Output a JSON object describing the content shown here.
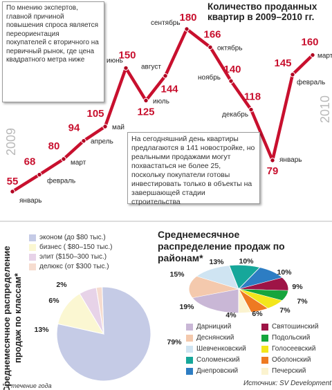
{
  "line_title": "Количество проданных квартир в 2009–2010 гг.",
  "note_experts": "По мнению экспертов, главной причиной повышения спроса является переориентация покупателей с вторичного на первичный рынок, где цена квадратного метра ниже",
  "note_today": "На сегодняшний день квартиры предлагаются в 141 новостройке, но реальными продажами могут похвастаться не более 25, поскольку покупатели готовы инвестировать только в объекты на завершающей стадии строительства",
  "year_2009": "2009",
  "year_2010": "2010",
  "classes_title": "Среднемесячное распределение продаж по классам*",
  "districts_title": "Среднемесячное распределение продаж по районам*",
  "footnote": "* в течение года",
  "source": "Источник: SV Development",
  "colors": {
    "line": "#c8102e",
    "marker": "#b00020"
  },
  "chart_data": [
    {
      "type": "line",
      "title": "Количество проданных квартир в 2009–2010 гг.",
      "x": [
        "январь",
        "февраль",
        "март",
        "апрель",
        "май",
        "июнь",
        "июль",
        "август",
        "сентябрь",
        "октябрь",
        "ноябрь",
        "декабрь",
        "январь",
        "февраль",
        "март"
      ],
      "series": [
        {
          "values": [
            55,
            68,
            80,
            94,
            105,
            150,
            125,
            144,
            180,
            166,
            140,
            118,
            79,
            145,
            160
          ]
        }
      ],
      "years": [
        "2009",
        "2010"
      ]
    },
    {
      "type": "pie",
      "title": "Среднемесячное распределение продаж по классам*",
      "labels": [
        "эконом (до $80 тыс.)",
        "бизнес ( $80–150 тыс.)",
        "элит ($150–300 тыс.)",
        "делюкс (от $300 тыс.)"
      ],
      "values": [
        79,
        13,
        6,
        2
      ],
      "colors": [
        "#c5cbe6",
        "#fbf7d2",
        "#e7d3e8",
        "#f6dccf"
      ]
    },
    {
      "type": "pie",
      "title": "Среднемесячное распределение продаж по районам*",
      "labels": [
        "Дарницкий",
        "Деснянский",
        "Шевченковский",
        "Соломенский",
        "Днепровский",
        "Святошинский",
        "Подольский",
        "Голосеевский",
        "Оболонский",
        "Печерский"
      ],
      "values": [
        19,
        15,
        13,
        10,
        10,
        9,
        7,
        7,
        6,
        4
      ],
      "colors": [
        "#c9b7d6",
        "#f4c9ad",
        "#cfe4f2",
        "#16a79a",
        "#2d7dc3",
        "#9e1446",
        "#16a53d",
        "#f3e61b",
        "#ee7a22",
        "#fbf3cf"
      ]
    }
  ]
}
